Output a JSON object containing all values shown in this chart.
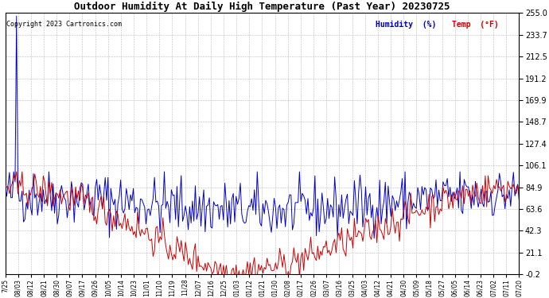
{
  "title": "Outdoor Humidity At Daily High Temperature (Past Year) 20230725",
  "copyright_text": "Copyright 2023 Cartronics.com",
  "legend_humidity": "Humidity  (%)",
  "legend_temp": "Temp  (°F)",
  "humidity_color": "#0000cc",
  "temp_color": "#cc0000",
  "background_color": "#ffffff",
  "plot_bg_color": "#ffffff",
  "grid_color": "#bbbbbb",
  "ymin": -0.2,
  "ymax": 255.0,
  "yticks": [
    255.0,
    233.7,
    212.5,
    191.2,
    169.9,
    148.7,
    127.4,
    106.1,
    84.9,
    63.6,
    42.3,
    21.1,
    -0.2
  ],
  "n_points": 366,
  "x_tick_labels": [
    "7/25",
    "08/03",
    "08/12",
    "08/21",
    "08/30",
    "09/07",
    "09/17",
    "09/26",
    "10/05",
    "10/14",
    "10/23",
    "11/01",
    "11/10",
    "11/19",
    "11/28",
    "12/07",
    "12/16",
    "12/25",
    "01/03",
    "01/12",
    "01/21",
    "01/30",
    "02/08",
    "02/17",
    "02/26",
    "03/07",
    "03/16",
    "03/25",
    "04/03",
    "04/12",
    "04/21",
    "04/30",
    "05/09",
    "05/18",
    "05/27",
    "06/05",
    "06/14",
    "06/23",
    "07/02",
    "07/11",
    "07/20"
  ],
  "figsize": [
    6.9,
    3.75
  ],
  "dpi": 100
}
